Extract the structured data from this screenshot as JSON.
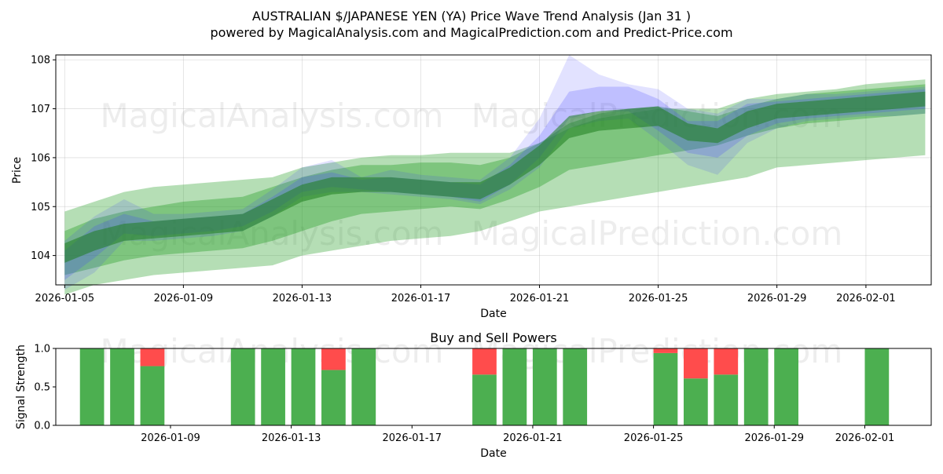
{
  "header": {
    "title": "AUSTRALIAN $/JAPANESE YEN (YA) Price Wave Trend Analysis (Jan 31 )",
    "subtitle": "powered by MagicalAnalysis.com and MagicalPrediction.com and Predict-Price.com"
  },
  "watermarks": [
    "MagicalAnalysis.com",
    "MagicalPrediction.com"
  ],
  "chart_data": [
    {
      "type": "area",
      "xlabel": "Date",
      "ylabel": "Price",
      "ylim": [
        103.4,
        108.1
      ],
      "xlim_day_offsets": [
        -0.3,
        29.2
      ],
      "start_date": "2026-01-05",
      "yticks": [
        104,
        105,
        106,
        107,
        108
      ],
      "xticks": [
        {
          "offset": 0,
          "label": "2026-01-05"
        },
        {
          "offset": 4,
          "label": "2026-01-09"
        },
        {
          "offset": 8,
          "label": "2026-01-13"
        },
        {
          "offset": 12,
          "label": "2026-01-17"
        },
        {
          "offset": 16,
          "label": "2026-01-21"
        },
        {
          "offset": 20,
          "label": "2026-01-25"
        },
        {
          "offset": 24,
          "label": "2026-01-29"
        },
        {
          "offset": 27,
          "label": "2026-02-01"
        }
      ],
      "grid": true,
      "bands": [
        {
          "name": "green-outer",
          "color": "#2ca02c",
          "opacity": 0.35,
          "x": [
            0,
            1,
            2,
            3,
            4,
            5,
            6,
            7,
            8,
            9,
            10,
            11,
            12,
            13,
            14,
            15,
            16,
            17,
            18,
            19,
            20,
            21,
            22,
            23,
            24,
            25,
            26,
            27,
            28,
            29
          ],
          "upper": [
            104.9,
            105.1,
            105.3,
            105.4,
            105.45,
            105.5,
            105.55,
            105.6,
            105.8,
            105.9,
            106.0,
            106.05,
            106.05,
            106.1,
            106.1,
            106.1,
            106.3,
            106.6,
            106.8,
            106.9,
            107.0,
            107.0,
            107.0,
            107.2,
            107.3,
            107.35,
            107.4,
            107.5,
            107.55,
            107.6
          ],
          "lower": [
            103.2,
            103.4,
            103.5,
            103.6,
            103.65,
            103.7,
            103.75,
            103.8,
            104.0,
            104.1,
            104.2,
            104.3,
            104.35,
            104.4,
            104.5,
            104.7,
            104.9,
            105.0,
            105.1,
            105.2,
            105.3,
            105.4,
            105.5,
            105.6,
            105.8,
            105.85,
            105.9,
            105.95,
            106.0,
            106.05
          ]
        },
        {
          "name": "green-mid",
          "color": "#2ca02c",
          "opacity": 0.4,
          "x": [
            0,
            1,
            2,
            3,
            4,
            5,
            6,
            7,
            8,
            9,
            10,
            11,
            12,
            13,
            14,
            15,
            16,
            17,
            18,
            19,
            20,
            21,
            22,
            23,
            24,
            25,
            26,
            27,
            28,
            29
          ],
          "upper": [
            104.5,
            104.75,
            104.9,
            105.0,
            105.1,
            105.15,
            105.2,
            105.4,
            105.6,
            105.75,
            105.85,
            105.85,
            105.9,
            105.9,
            105.85,
            106.0,
            106.3,
            106.7,
            106.9,
            107.0,
            107.05,
            106.95,
            106.85,
            107.05,
            107.2,
            107.3,
            107.35,
            107.4,
            107.45,
            107.5
          ],
          "lower": [
            103.6,
            103.75,
            103.9,
            104.0,
            104.05,
            104.1,
            104.15,
            104.3,
            104.5,
            104.7,
            104.85,
            104.9,
            104.95,
            105.0,
            104.95,
            105.15,
            105.4,
            105.75,
            105.85,
            105.95,
            106.05,
            106.15,
            106.25,
            106.45,
            106.6,
            106.7,
            106.75,
            106.8,
            106.85,
            106.9
          ]
        },
        {
          "name": "blue-spike",
          "color": "#3333ff",
          "opacity": 0.14,
          "x": [
            0,
            1,
            2,
            3,
            4,
            5,
            6,
            7,
            8,
            9,
            10,
            11,
            12,
            13,
            14,
            15,
            16,
            17,
            18,
            19,
            20,
            21,
            22,
            23,
            24,
            25,
            26,
            27,
            28,
            29
          ],
          "upper": [
            104.3,
            104.8,
            105.15,
            104.85,
            104.85,
            104.9,
            104.95,
            105.35,
            105.8,
            105.95,
            105.6,
            105.75,
            105.65,
            105.6,
            105.55,
            106.0,
            106.8,
            108.1,
            107.7,
            107.5,
            107.4,
            107.0,
            106.9,
            107.2,
            107.2,
            107.3,
            107.3,
            107.35,
            107.4,
            107.45
          ],
          "lower": [
            103.3,
            103.65,
            104.3,
            104.3,
            104.35,
            104.4,
            104.5,
            104.8,
            105.2,
            105.3,
            105.3,
            105.25,
            105.2,
            105.15,
            105.05,
            105.35,
            105.8,
            106.6,
            106.75,
            106.8,
            106.35,
            105.85,
            105.65,
            106.3,
            106.6,
            106.75,
            106.8,
            106.85,
            106.85,
            106.9
          ]
        },
        {
          "name": "blue-inner",
          "color": "#4444ff",
          "opacity": 0.22,
          "x": [
            0,
            1,
            2,
            3,
            4,
            5,
            6,
            7,
            8,
            9,
            10,
            11,
            12,
            13,
            14,
            15,
            16,
            17,
            18,
            19,
            20,
            21,
            22,
            23,
            24,
            25,
            26,
            27,
            28,
            29
          ],
          "upper": [
            104.1,
            104.6,
            104.85,
            104.7,
            104.75,
            104.8,
            104.85,
            105.2,
            105.6,
            105.7,
            105.55,
            105.6,
            105.55,
            105.5,
            105.45,
            105.85,
            106.45,
            107.35,
            107.45,
            107.45,
            107.2,
            106.75,
            106.75,
            107.1,
            107.15,
            107.2,
            107.25,
            107.3,
            107.35,
            107.4
          ],
          "lower": [
            103.5,
            103.95,
            104.45,
            104.4,
            104.45,
            104.5,
            104.6,
            104.9,
            105.3,
            105.4,
            105.35,
            105.3,
            105.25,
            105.2,
            105.1,
            105.45,
            106.0,
            106.8,
            106.95,
            106.95,
            106.55,
            106.1,
            106.0,
            106.45,
            106.7,
            106.8,
            106.85,
            106.9,
            106.95,
            107.0
          ]
        },
        {
          "name": "green-core",
          "color": "#1e7e1e",
          "opacity": 0.55,
          "x": [
            0,
            1,
            2,
            3,
            4,
            5,
            6,
            7,
            8,
            9,
            10,
            11,
            12,
            13,
            14,
            15,
            16,
            17,
            18,
            19,
            20,
            21,
            22,
            23,
            24,
            25,
            26,
            27,
            28,
            29
          ],
          "upper": [
            104.25,
            104.5,
            104.65,
            104.7,
            104.75,
            104.8,
            104.85,
            105.15,
            105.45,
            105.6,
            105.6,
            105.6,
            105.55,
            105.5,
            105.5,
            105.8,
            106.25,
            106.85,
            106.95,
            107.0,
            107.05,
            106.7,
            106.6,
            106.95,
            107.1,
            107.15,
            107.2,
            107.25,
            107.3,
            107.35
          ],
          "lower": [
            103.85,
            104.1,
            104.3,
            104.35,
            104.4,
            104.45,
            104.5,
            104.8,
            105.1,
            105.25,
            105.3,
            105.3,
            105.25,
            105.2,
            105.15,
            105.45,
            105.85,
            106.4,
            106.55,
            106.6,
            106.65,
            106.35,
            106.3,
            106.6,
            106.8,
            106.85,
            106.9,
            106.95,
            107.0,
            107.05
          ]
        }
      ]
    },
    {
      "type": "bar",
      "title": "Buy and Sell Powers",
      "xlabel": "Date",
      "ylabel": "Signal Strength",
      "ylim": [
        0,
        1.0
      ],
      "xlim_day_offsets": [
        0.2,
        29.2
      ],
      "start_date": "2026-01-05",
      "yticks": [
        {
          "value": 0,
          "label": "0.0"
        },
        {
          "value": 0.5,
          "label": "0.5"
        },
        {
          "value": 1.0,
          "label": "1.0"
        }
      ],
      "xticks": [
        {
          "offset": 4,
          "label": "2026-01-09"
        },
        {
          "offset": 8,
          "label": "2026-01-13"
        },
        {
          "offset": 12,
          "label": "2026-01-17"
        },
        {
          "offset": 16,
          "label": "2026-01-21"
        },
        {
          "offset": 20,
          "label": "2026-01-25"
        },
        {
          "offset": 24,
          "label": "2026-01-29"
        },
        {
          "offset": 27,
          "label": "2026-02-01"
        }
      ],
      "buy_color": "#4caf50",
      "sell_color": "#ff4c4c",
      "bars": [
        {
          "date": "2026-01-07",
          "offset": 1.4,
          "buy": 1.0,
          "sell": 0.0
        },
        {
          "date": "2026-01-08",
          "offset": 2.4,
          "buy": 1.0,
          "sell": 0.0
        },
        {
          "date": "2026-01-09",
          "offset": 3.4,
          "buy": 0.77,
          "sell": 0.23
        },
        {
          "date": "2026-01-12",
          "offset": 6.4,
          "buy": 1.0,
          "sell": 0.0
        },
        {
          "date": "2026-01-13",
          "offset": 7.4,
          "buy": 1.0,
          "sell": 0.0
        },
        {
          "date": "2026-01-14",
          "offset": 8.4,
          "buy": 1.0,
          "sell": 0.0
        },
        {
          "date": "2026-01-15",
          "offset": 9.4,
          "buy": 0.72,
          "sell": 0.28
        },
        {
          "date": "2026-01-16",
          "offset": 10.4,
          "buy": 1.0,
          "sell": 0.0
        },
        {
          "date": "2026-01-20",
          "offset": 14.4,
          "buy": 0.66,
          "sell": 0.34
        },
        {
          "date": "2026-01-21",
          "offset": 15.4,
          "buy": 1.0,
          "sell": 0.0
        },
        {
          "date": "2026-01-22",
          "offset": 16.4,
          "buy": 1.0,
          "sell": 0.0
        },
        {
          "date": "2026-01-23",
          "offset": 17.4,
          "buy": 1.0,
          "sell": 0.0
        },
        {
          "date": "2026-01-26",
          "offset": 20.4,
          "buy": 0.94,
          "sell": 0.06
        },
        {
          "date": "2026-01-27",
          "offset": 21.4,
          "buy": 0.61,
          "sell": 0.39
        },
        {
          "date": "2026-01-28",
          "offset": 22.4,
          "buy": 0.66,
          "sell": 0.34
        },
        {
          "date": "2026-01-29",
          "offset": 23.4,
          "buy": 1.0,
          "sell": 0.0
        },
        {
          "date": "2026-01-30",
          "offset": 24.4,
          "buy": 1.0,
          "sell": 0.0
        },
        {
          "date": "2026-02-02",
          "offset": 27.4,
          "buy": 1.0,
          "sell": 0.0
        }
      ]
    }
  ]
}
